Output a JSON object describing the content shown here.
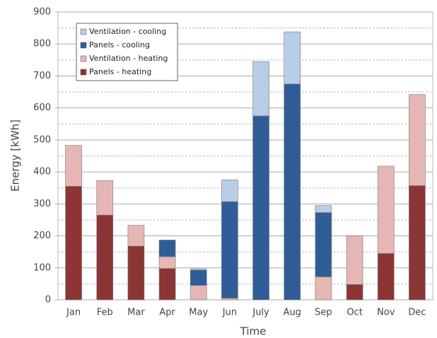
{
  "chart_data": {
    "type": "stacked_bar",
    "x_label": "Time",
    "y_label": "Energy [kWh]",
    "categories": [
      "Jan",
      "Feb",
      "Mar",
      "Apr",
      "May",
      "Jun",
      "July",
      "Aug",
      "Sep",
      "Oct",
      "Nov",
      "Dec"
    ],
    "series": [
      {
        "name": "Panels - heating",
        "color": "#8c3535",
        "values": [
          355,
          265,
          168,
          98,
          0,
          0,
          0,
          0,
          0,
          48,
          145,
          357
        ]
      },
      {
        "name": "Ventilation - heating",
        "color": "#e6b6b5",
        "values": [
          128,
          108,
          65,
          37,
          45,
          5,
          0,
          0,
          72,
          152,
          273,
          285
        ]
      },
      {
        "name": "Panels - cooling",
        "color": "#2f5d98",
        "values": [
          0,
          0,
          0,
          52,
          48,
          302,
          575,
          675,
          201,
          0,
          0,
          0
        ]
      },
      {
        "name": "Ventilation - cooling",
        "color": "#b8cde6",
        "values": [
          0,
          0,
          0,
          0,
          4,
          68,
          170,
          163,
          22,
          0,
          0,
          0
        ]
      }
    ],
    "ylim": [
      0,
      900
    ],
    "yticks": [
      0,
      100,
      200,
      300,
      400,
      500,
      600,
      700,
      800,
      900
    ],
    "grid": true,
    "minor_grid": true,
    "legend": "upper left"
  }
}
